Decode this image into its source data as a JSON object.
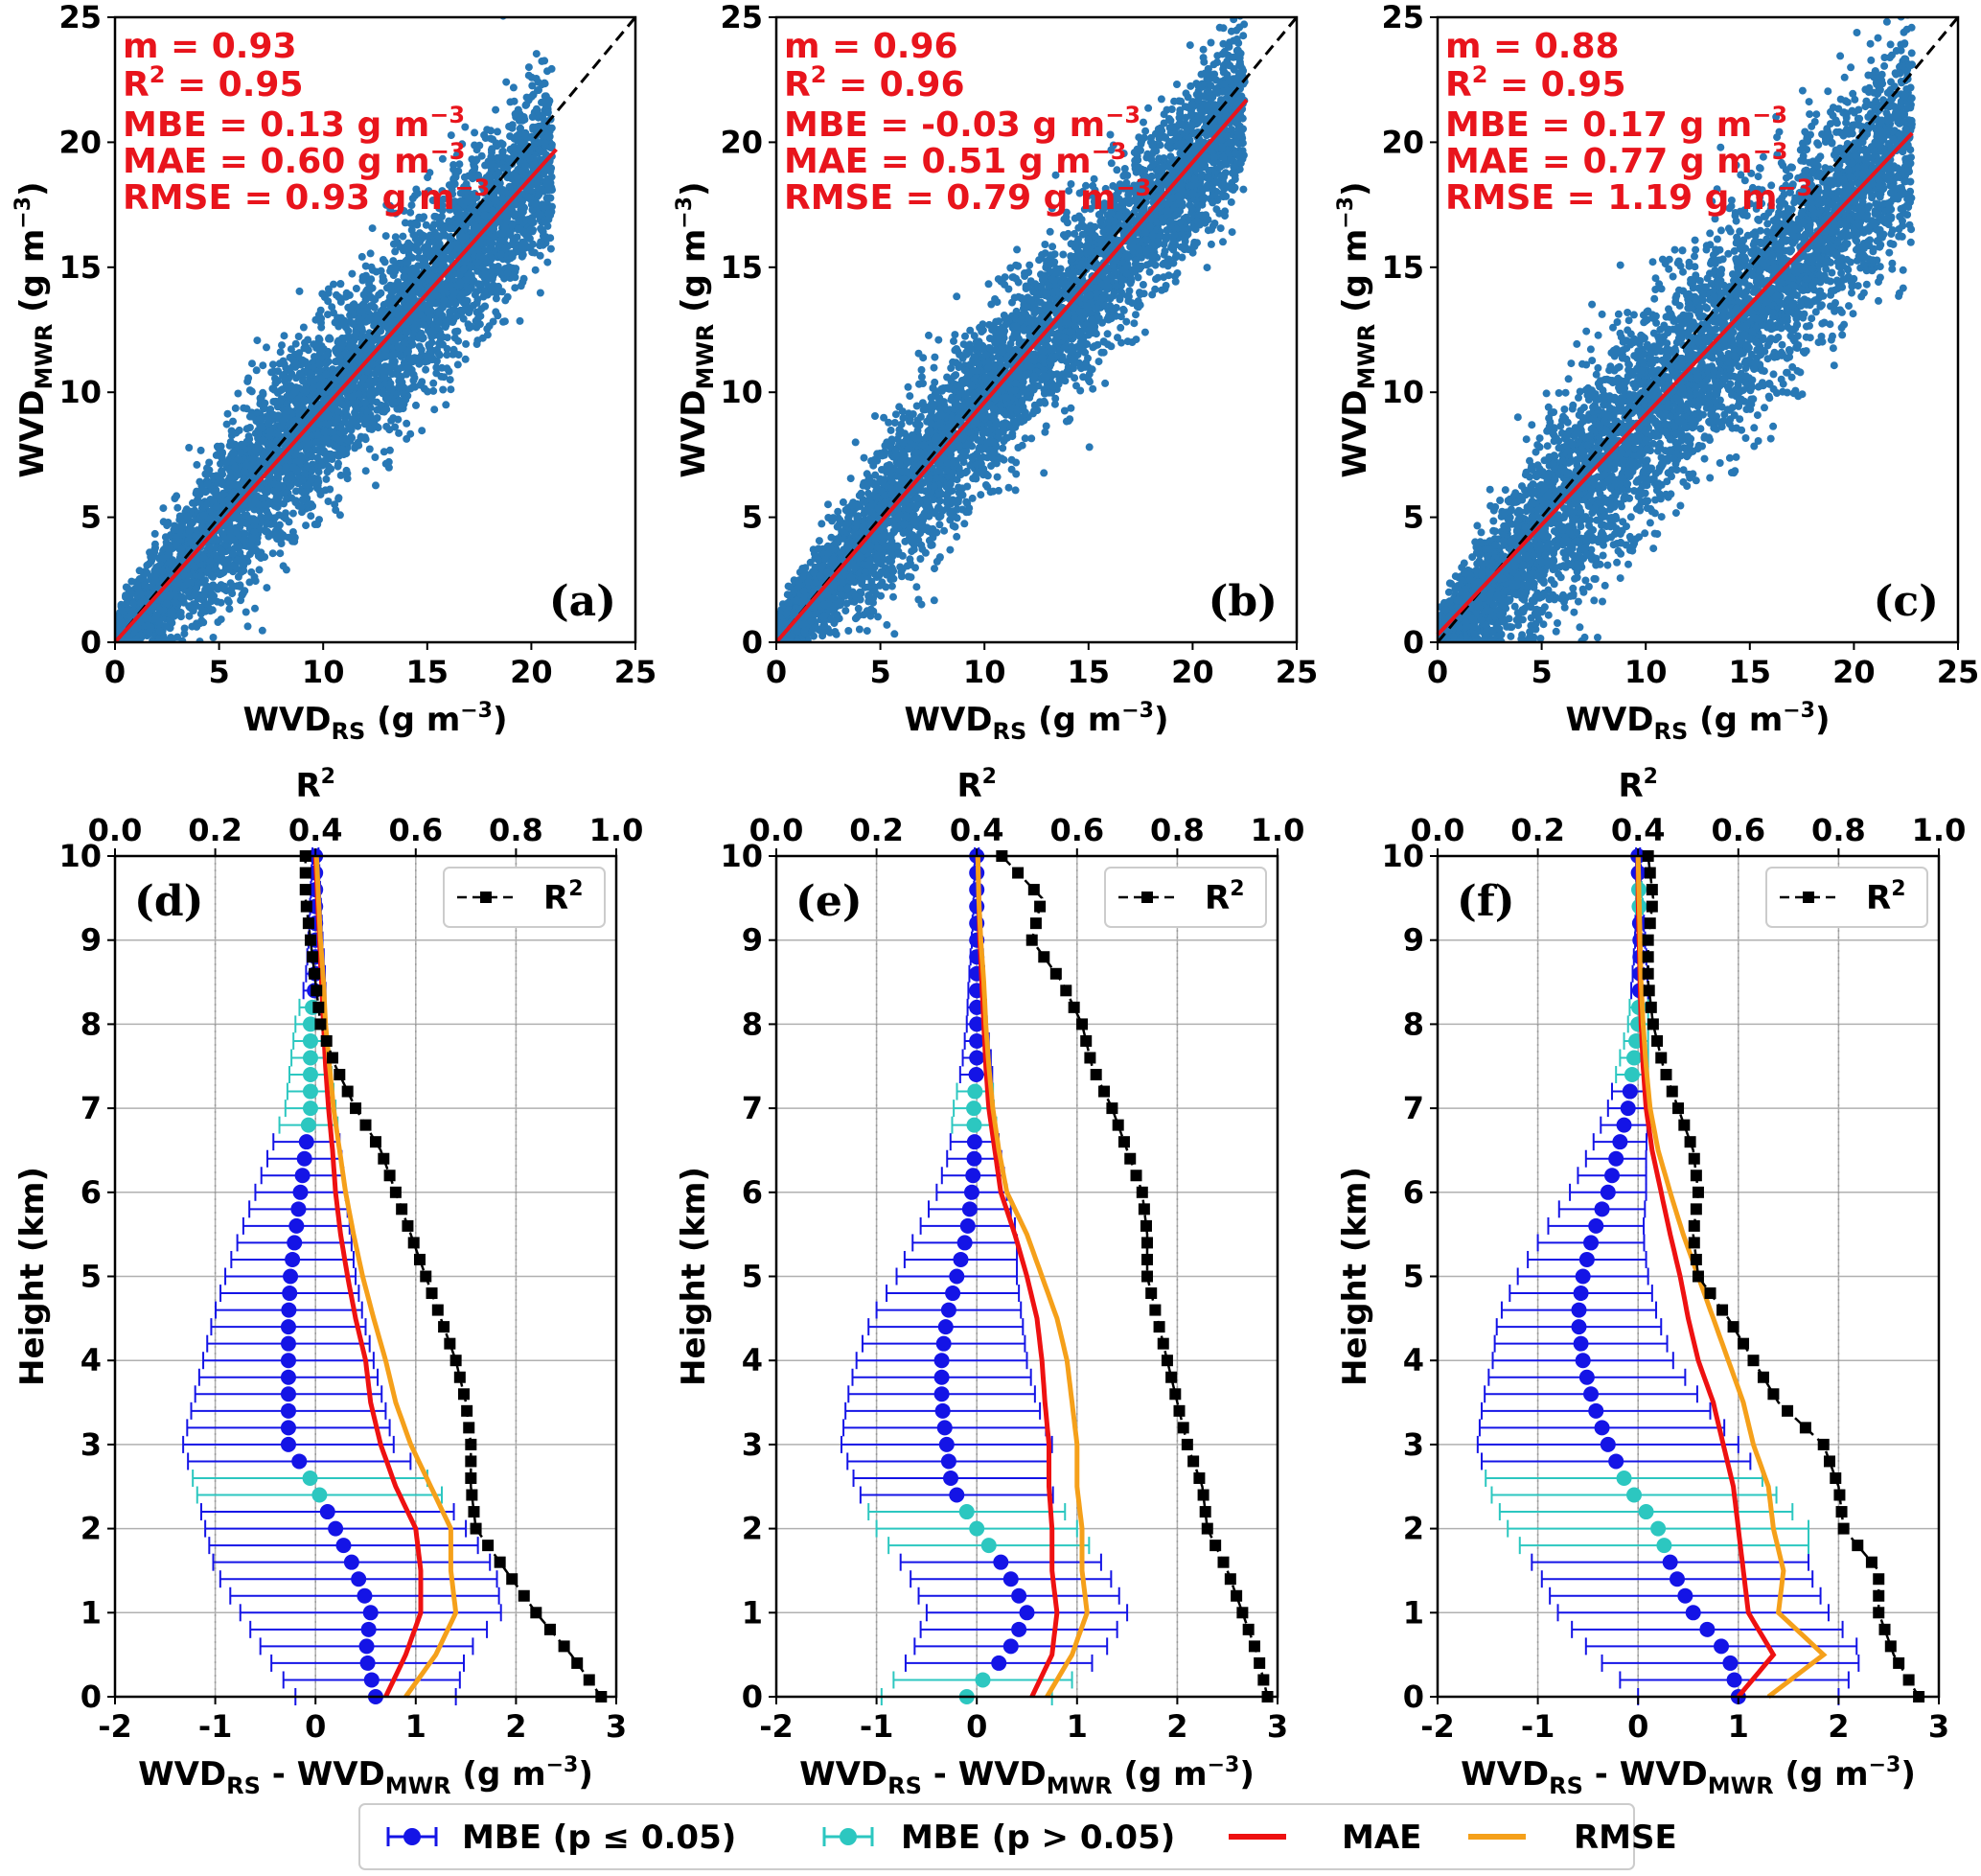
{
  "colors": {
    "scatter": "#2878b5",
    "fit_line": "#e8141c",
    "one_to_one": "#000000",
    "mbe_significant": "#1414e6",
    "mbe_not_significant": "#2cc7c0",
    "mae": "#ee1111",
    "rmse": "#f5a01a",
    "r2": "#000000",
    "stat_text": "#e8141c"
  },
  "chart_data": [
    {
      "type": "scatter",
      "panel_label": "(a)",
      "xlabel_main": "WVD",
      "xlabel_sub": "RS",
      "xlabel_unit": "(g m",
      "xlabel_exp": "−3",
      "xlabel_close": ")",
      "ylabel_main": "WVD",
      "ylabel_sub": "MWR",
      "ylabel_unit": "(g m",
      "ylabel_exp": "−3",
      "ylabel_close": ")",
      "xlim": [
        0,
        25
      ],
      "ylim": [
        0,
        25
      ],
      "xticks": [
        "0",
        "5",
        "10",
        "15",
        "20",
        "25"
      ],
      "yticks": [
        "0",
        "5",
        "10",
        "15",
        "20",
        "25"
      ],
      "stats": {
        "m": "m = 0.93",
        "r2_prefix": "R",
        "r2_exp": "2",
        "r2_value": " = 0.95",
        "mbe": "MBE = 0.13 g m",
        "mae": "MAE = 0.60 g m",
        "rmse": "RMSE = 0.93 g m",
        "unit_exp": "−3"
      },
      "fit": {
        "slope": 0.93,
        "intercept": 0.0,
        "x_end": 21.2
      },
      "cloud": {
        "x_max": 21,
        "spread": 1.35,
        "slope": 0.93
      }
    },
    {
      "type": "scatter",
      "panel_label": "(b)",
      "xlabel_main": "WVD",
      "xlabel_sub": "RS",
      "xlabel_unit": "(g m",
      "xlabel_exp": "−3",
      "xlabel_close": ")",
      "ylabel_main": "WVD",
      "ylabel_sub": "MWR",
      "ylabel_unit": "(g m",
      "ylabel_exp": "−3",
      "ylabel_close": ")",
      "xlim": [
        0,
        25
      ],
      "ylim": [
        0,
        25
      ],
      "xticks": [
        "0",
        "5",
        "10",
        "15",
        "20",
        "25"
      ],
      "yticks": [
        "0",
        "5",
        "10",
        "15",
        "20",
        "25"
      ],
      "stats": {
        "m": "m = 0.96",
        "r2_prefix": "R",
        "r2_exp": "2",
        "r2_value": " = 0.96",
        "mbe": "MBE = -0.03 g m",
        "mae": "MAE = 0.51 g m",
        "rmse": "RMSE = 0.79 g m",
        "unit_exp": "−3"
      },
      "fit": {
        "slope": 0.96,
        "intercept": 0.0,
        "x_end": 22.6
      },
      "cloud": {
        "x_max": 22.5,
        "spread": 1.2,
        "slope": 0.96
      }
    },
    {
      "type": "scatter",
      "panel_label": "(c)",
      "xlabel_main": "WVD",
      "xlabel_sub": "RS",
      "xlabel_unit": "(g m",
      "xlabel_exp": "−3",
      "xlabel_close": ")",
      "ylabel_main": "WVD",
      "ylabel_sub": "MWR",
      "ylabel_unit": "(g m",
      "ylabel_exp": "−3",
      "ylabel_close": ")",
      "xlim": [
        0,
        25
      ],
      "ylim": [
        0,
        25
      ],
      "xticks": [
        "0",
        "5",
        "10",
        "15",
        "20",
        "25"
      ],
      "yticks": [
        "0",
        "5",
        "10",
        "15",
        "20",
        "25"
      ],
      "stats": {
        "m": "m = 0.88",
        "r2_prefix": "R",
        "r2_exp": "2",
        "r2_value": " = 0.95",
        "mbe": "MBE = 0.17 g m",
        "mae": "MAE = 0.77 g m",
        "rmse": "RMSE = 1.19 g m",
        "unit_exp": "−3"
      },
      "fit": {
        "slope": 0.88,
        "intercept": 0.3,
        "x_end": 22.8
      },
      "cloud": {
        "x_max": 22.8,
        "spread": 1.7,
        "slope": 0.9
      }
    },
    {
      "type": "line",
      "panel_label": "(d)",
      "xlabel": "WVD_RS - WVD_MWR (g m^-3)",
      "ylabel": "Height (km)",
      "top_xlabel": "R2",
      "xlim": [
        -2,
        3
      ],
      "ylim": [
        0,
        10
      ],
      "top_xlim": [
        0,
        1
      ],
      "xticks": [
        "-2",
        "-1",
        "0",
        "1",
        "2",
        "3"
      ],
      "yticks": [
        "0",
        "1",
        "2",
        "3",
        "4",
        "5",
        "6",
        "7",
        "8",
        "9",
        "10"
      ],
      "top_xticks": [
        "0.0",
        "0.2",
        "0.4",
        "0.6",
        "0.8",
        "1.0"
      ],
      "legend": "R",
      "legend_exp": "2",
      "profile": {
        "heights": [
          0,
          0.5,
          1,
          1.5,
          2,
          2.5,
          3,
          3.5,
          4,
          4.5,
          5,
          5.5,
          6,
          6.5,
          7,
          7.5,
          8,
          8.5,
          9,
          9.5,
          10
        ],
        "mbe": [
          0.6,
          0.5,
          0.55,
          0.4,
          0.2,
          0.0,
          -0.27,
          -0.27,
          -0.27,
          -0.27,
          -0.25,
          -0.2,
          -0.15,
          -0.1,
          -0.05,
          -0.05,
          -0.05,
          0.0,
          0.0,
          0.0,
          0.0
        ],
        "mbe_err": [
          0.8,
          1.0,
          1.3,
          1.4,
          1.3,
          1.2,
          1.05,
          0.95,
          0.85,
          0.75,
          0.65,
          0.55,
          0.45,
          0.35,
          0.25,
          0.2,
          0.15,
          0.1,
          0.07,
          0.05,
          0.03
        ],
        "mbe_sig": [
          true,
          true,
          true,
          true,
          true,
          false,
          true,
          true,
          true,
          true,
          true,
          true,
          true,
          true,
          false,
          false,
          false,
          true,
          true,
          true,
          true
        ],
        "mae": [
          0.7,
          0.9,
          1.05,
          1.05,
          1.0,
          0.8,
          0.65,
          0.55,
          0.5,
          0.4,
          0.32,
          0.25,
          0.2,
          0.17,
          0.13,
          0.1,
          0.08,
          0.06,
          0.04,
          0.02,
          0.0
        ],
        "rmse": [
          0.9,
          1.2,
          1.4,
          1.35,
          1.35,
          1.15,
          0.95,
          0.8,
          0.7,
          0.58,
          0.47,
          0.38,
          0.3,
          0.24,
          0.18,
          0.14,
          0.1,
          0.08,
          0.05,
          0.03,
          0.01
        ],
        "r2": [
          0.97,
          0.91,
          0.84,
          0.78,
          0.72,
          0.71,
          0.71,
          0.7,
          0.68,
          0.65,
          0.62,
          0.59,
          0.56,
          0.53,
          0.48,
          0.44,
          0.41,
          0.4,
          0.39,
          0.38,
          0.38
        ]
      }
    },
    {
      "type": "line",
      "panel_label": "(e)",
      "xlabel": "WVD_RS - WVD_MWR (g m^-3)",
      "ylabel": "Height (km)",
      "top_xlabel": "R2",
      "xlim": [
        -2,
        3
      ],
      "ylim": [
        0,
        10
      ],
      "top_xlim": [
        0,
        1
      ],
      "xticks": [
        "-2",
        "-1",
        "0",
        "1",
        "2",
        "3"
      ],
      "yticks": [
        "0",
        "1",
        "2",
        "3",
        "4",
        "5",
        "6",
        "7",
        "8",
        "9",
        "10"
      ],
      "top_xticks": [
        "0.0",
        "0.2",
        "0.4",
        "0.6",
        "0.8",
        "1.0"
      ],
      "legend": "R",
      "legend_exp": "2",
      "profile": {
        "heights": [
          0,
          0.5,
          1,
          1.5,
          2,
          2.5,
          3,
          3.5,
          4,
          4.5,
          5,
          5.5,
          6,
          6.5,
          7,
          7.5,
          8,
          8.5,
          9,
          9.5,
          10
        ],
        "mbe": [
          -0.1,
          0.3,
          0.5,
          0.3,
          0.0,
          -0.25,
          -0.3,
          -0.35,
          -0.35,
          -0.3,
          -0.2,
          -0.1,
          -0.05,
          -0.02,
          -0.03,
          0.0,
          0.0,
          0.0,
          0.0,
          0.0,
          0.0
        ],
        "mbe_err": [
          0.85,
          0.95,
          1.0,
          1.0,
          1.0,
          0.95,
          1.05,
          0.95,
          0.85,
          0.75,
          0.6,
          0.5,
          0.35,
          0.25,
          0.2,
          0.15,
          0.1,
          0.08,
          0.05,
          0.03,
          0.02
        ],
        "mbe_sig": [
          false,
          true,
          true,
          true,
          false,
          true,
          true,
          true,
          true,
          true,
          true,
          true,
          true,
          true,
          false,
          true,
          true,
          true,
          true,
          true,
          true
        ],
        "mae": [
          0.55,
          0.75,
          0.8,
          0.75,
          0.75,
          0.72,
          0.72,
          0.68,
          0.65,
          0.6,
          0.5,
          0.38,
          0.24,
          0.18,
          0.12,
          0.09,
          0.07,
          0.05,
          0.03,
          0.02,
          0.01
        ],
        "rmse": [
          0.7,
          0.95,
          1.1,
          1.05,
          1.05,
          1.0,
          1.0,
          0.95,
          0.9,
          0.8,
          0.65,
          0.5,
          0.3,
          0.22,
          0.16,
          0.12,
          0.09,
          0.07,
          0.04,
          0.02,
          0.01
        ],
        "r2": [
          0.98,
          0.96,
          0.93,
          0.9,
          0.86,
          0.85,
          0.82,
          0.8,
          0.78,
          0.76,
          0.74,
          0.74,
          0.73,
          0.7,
          0.67,
          0.63,
          0.61,
          0.57,
          0.51,
          0.53,
          0.45
        ]
      }
    },
    {
      "type": "line",
      "panel_label": "(f)",
      "xlabel": "WVD_RS - WVD_MWR (g m^-3)",
      "ylabel": "Height (km)",
      "top_xlabel": "R2",
      "xlim": [
        -2,
        3
      ],
      "ylim": [
        0,
        10
      ],
      "top_xlim": [
        0,
        1
      ],
      "xticks": [
        "-2",
        "-1",
        "0",
        "1",
        "2",
        "3"
      ],
      "yticks": [
        "0",
        "1",
        "2",
        "3",
        "4",
        "5",
        "6",
        "7",
        "8",
        "9",
        "10"
      ],
      "top_xticks": [
        "0.0",
        "0.2",
        "0.4",
        "0.6",
        "0.8",
        "1.0"
      ],
      "legend": "R",
      "legend_exp": "2",
      "profile": {
        "heights": [
          0,
          0.5,
          1,
          1.5,
          2,
          2.5,
          3,
          3.5,
          4,
          4.5,
          5,
          5.5,
          6,
          6.5,
          7,
          7.5,
          8,
          8.5,
          9,
          9.5,
          10
        ],
        "mbe": [
          1.0,
          0.9,
          0.55,
          0.35,
          0.2,
          -0.1,
          -0.3,
          -0.45,
          -0.55,
          -0.6,
          -0.55,
          -0.45,
          -0.3,
          -0.2,
          -0.1,
          -0.05,
          0.0,
          0.02,
          0.02,
          0.01,
          0.0
        ],
        "mbe_err": [
          1.0,
          1.35,
          1.35,
          1.35,
          1.5,
          1.4,
          1.3,
          1.1,
          0.9,
          0.8,
          0.65,
          0.5,
          0.38,
          0.28,
          0.2,
          0.15,
          0.1,
          0.08,
          0.05,
          0.03,
          0.02
        ],
        "mbe_sig": [
          true,
          true,
          true,
          true,
          false,
          false,
          true,
          true,
          true,
          true,
          true,
          true,
          true,
          true,
          true,
          false,
          false,
          true,
          true,
          false,
          true
        ],
        "mae": [
          1.0,
          1.35,
          1.1,
          1.05,
          1.0,
          0.95,
          0.85,
          0.75,
          0.6,
          0.5,
          0.42,
          0.32,
          0.23,
          0.14,
          0.08,
          0.05,
          0.03,
          0.02,
          0.01,
          0.0,
          0.0
        ],
        "rmse": [
          1.3,
          1.85,
          1.4,
          1.45,
          1.35,
          1.3,
          1.15,
          1.05,
          0.9,
          0.75,
          0.6,
          0.45,
          0.32,
          0.2,
          0.12,
          0.08,
          0.05,
          0.03,
          0.02,
          0.01,
          0.0
        ],
        "r2": [
          0.96,
          0.91,
          0.88,
          0.88,
          0.81,
          0.8,
          0.77,
          0.68,
          0.63,
          0.58,
          0.52,
          0.51,
          0.52,
          0.51,
          0.48,
          0.45,
          0.43,
          0.42,
          0.42,
          0.43,
          0.42
        ]
      }
    }
  ],
  "legend": {
    "mbe_sig": "MBE (p ≤  0.05)",
    "mbe_not_sig": "MBE (p > 0.05)",
    "mae": "MAE",
    "rmse": "RMSE"
  }
}
